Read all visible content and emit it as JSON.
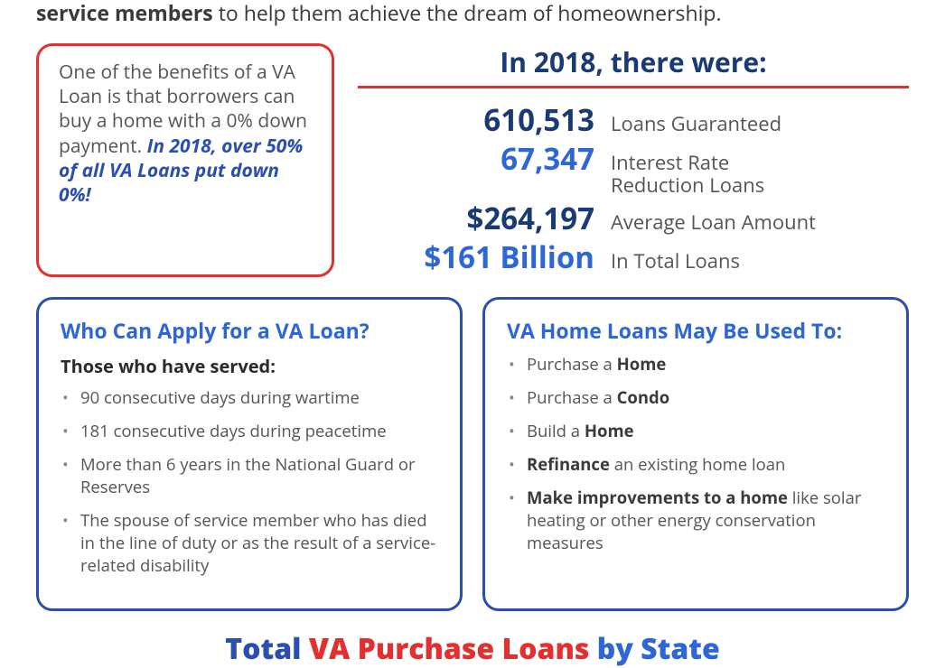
{
  "colors": {
    "navy": "#1a3a73",
    "red": "#e22f2f",
    "royal": "#2a4fb0",
    "bright_blue": "#2e66d6",
    "text_grey": "#555555",
    "rule_red": "#e22f2f",
    "white": "#ffffff"
  },
  "intro": {
    "prefix_bold": "service members",
    "rest": " to help them achieve the dream of homeownership."
  },
  "benefit_box": {
    "border_color": "#e22f2f",
    "text1": "One of the benefits of a VA Loan is that borrowers can buy a home with a 0% down payment. ",
    "em_text": "In 2018, over 50% of all VA Loans put down 0%!",
    "em_color": "#2a4fb0"
  },
  "stats": {
    "title": "In 2018, there were:",
    "title_color": "#1a3a73",
    "rule_color": "#e22f2f",
    "rows": [
      {
        "num": "610,513",
        "num_color": "#1a3a73",
        "label": "Loans Guaranteed"
      },
      {
        "num": "67,347",
        "num_color": "#2e66d6",
        "label": "Interest Rate\nReduction Loans"
      },
      {
        "num": "$264,197",
        "num_color": "#1a3a73",
        "label": "Average Loan Amount"
      },
      {
        "num": "$161 Billion",
        "num_color": "#2e66d6",
        "label": "In Total Loans"
      }
    ]
  },
  "card_left": {
    "border_color": "#2a4fb0",
    "title": "Who Can Apply for a VA Loan?",
    "title_color": "#2e66d6",
    "subhead": "Those who have served:",
    "items": [
      "90 consecutive days during wartime",
      "181 consecutive days during peacetime",
      "More than 6 years in the National Guard or Reserves",
      "The spouse of service member who has died in the line of duty or as the result of a service-related disability"
    ]
  },
  "card_right": {
    "border_color": "#2a4fb0",
    "title": "VA Home Loans May Be Used To:",
    "title_color": "#2e66d6",
    "items_html": [
      "Purchase a <b>Home</b>",
      "Purchase a <b>Condo</b>",
      "Build a <b>Home</b>",
      "<b>Refinance</b> an existing home loan",
      "<b>Make improvements to a home</b> like solar heating or other energy conservation measures"
    ]
  },
  "footer": {
    "a": "Total ",
    "b": "VA Purchase Loans ",
    "c": "by State",
    "a_color": "#2a4fb0",
    "b_color": "#e22f2f",
    "c_color": "#2e66d6"
  }
}
